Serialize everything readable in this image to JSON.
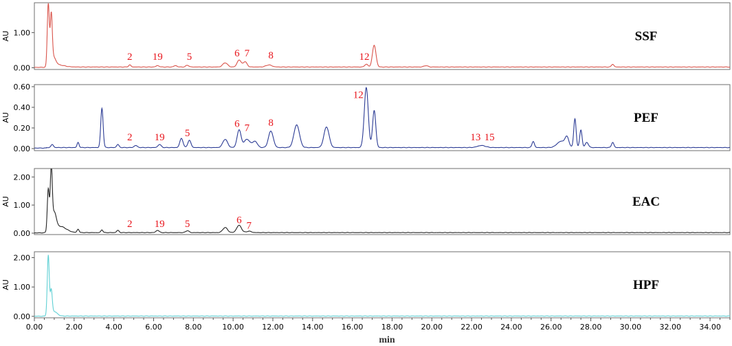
{
  "chart_data": {
    "type": "line",
    "xlabel": "min",
    "xlim": [
      0,
      35
    ],
    "x_ticks": [
      "0.00",
      "2.00",
      "4.00",
      "6.00",
      "8.00",
      "10.00",
      "12.00",
      "14.00",
      "16.00",
      "18.00",
      "20.00",
      "22.00",
      "24.00",
      "26.00",
      "28.00",
      "30.00",
      "32.00",
      "34.00"
    ],
    "panels": [
      {
        "name": "SSF",
        "color": "#d9534a",
        "ylabel": "AU",
        "ylim": [
          -0.05,
          1.85
        ],
        "y_ticks": [
          0.0,
          1.0
        ],
        "y_tick_labels": [
          "0.00",
          "1.00"
        ],
        "baseline": 0.02,
        "peaks": [
          [
            0.7,
            1.78,
            0.05
          ],
          [
            0.85,
            1.35,
            0.05
          ],
          [
            0.95,
            0.25,
            0.12
          ],
          [
            1.2,
            0.06,
            0.3
          ],
          [
            4.8,
            0.06,
            0.06
          ],
          [
            6.2,
            0.04,
            0.08
          ],
          [
            7.1,
            0.04,
            0.08
          ],
          [
            7.7,
            0.05,
            0.08
          ],
          [
            9.6,
            0.12,
            0.12
          ],
          [
            10.3,
            0.2,
            0.1
          ],
          [
            10.6,
            0.15,
            0.1
          ],
          [
            11.8,
            0.06,
            0.15
          ],
          [
            16.7,
            0.08,
            0.08
          ],
          [
            17.1,
            0.62,
            0.09
          ],
          [
            19.7,
            0.04,
            0.1
          ],
          [
            29.1,
            0.08,
            0.06
          ]
        ],
        "labels": [
          {
            "text": "2",
            "x": 4.8,
            "y": 0.22
          },
          {
            "text": "19",
            "x": 6.2,
            "y": 0.22
          },
          {
            "text": "5",
            "x": 7.8,
            "y": 0.22
          },
          {
            "text": "6",
            "x": 10.2,
            "y": 0.32
          },
          {
            "text": "7",
            "x": 10.7,
            "y": 0.32
          },
          {
            "text": "8",
            "x": 11.9,
            "y": 0.26
          },
          {
            "text": "12",
            "x": 16.6,
            "y": 0.22
          }
        ]
      },
      {
        "name": "PEF",
        "color": "#2a3a94",
        "ylabel": "AU",
        "ylim": [
          -0.02,
          0.62
        ],
        "y_ticks": [
          0.0,
          0.2,
          0.4,
          0.6
        ],
        "y_tick_labels": [
          "0.00",
          "0.20",
          "0.40",
          "0.60"
        ],
        "baseline": 0.01,
        "peaks": [
          [
            0.9,
            0.03,
            0.06
          ],
          [
            2.2,
            0.05,
            0.05
          ],
          [
            3.4,
            0.38,
            0.06
          ],
          [
            4.2,
            0.03,
            0.06
          ],
          [
            5.1,
            0.02,
            0.08
          ],
          [
            6.3,
            0.03,
            0.08
          ],
          [
            7.4,
            0.09,
            0.08
          ],
          [
            7.8,
            0.07,
            0.08
          ],
          [
            9.6,
            0.08,
            0.12
          ],
          [
            10.3,
            0.17,
            0.1
          ],
          [
            10.7,
            0.08,
            0.15
          ],
          [
            11.1,
            0.06,
            0.12
          ],
          [
            11.9,
            0.16,
            0.12
          ],
          [
            13.2,
            0.22,
            0.14
          ],
          [
            14.7,
            0.2,
            0.13
          ],
          [
            16.7,
            0.58,
            0.1
          ],
          [
            17.1,
            0.36,
            0.08
          ],
          [
            22.5,
            0.02,
            0.2
          ],
          [
            25.1,
            0.06,
            0.06
          ],
          [
            26.5,
            0.06,
            0.2
          ],
          [
            26.8,
            0.09,
            0.1
          ],
          [
            27.2,
            0.28,
            0.06
          ],
          [
            27.5,
            0.17,
            0.06
          ],
          [
            27.8,
            0.05,
            0.08
          ],
          [
            29.1,
            0.05,
            0.06
          ]
        ],
        "labels": [
          {
            "text": "2",
            "x": 4.8,
            "y": 0.08
          },
          {
            "text": "19",
            "x": 6.3,
            "y": 0.08
          },
          {
            "text": "5",
            "x": 7.7,
            "y": 0.12
          },
          {
            "text": "6",
            "x": 10.2,
            "y": 0.21
          },
          {
            "text": "7",
            "x": 10.7,
            "y": 0.17
          },
          {
            "text": "8",
            "x": 11.9,
            "y": 0.22
          },
          {
            "text": "12",
            "x": 16.3,
            "y": 0.49
          },
          {
            "text": "13",
            "x": 22.2,
            "y": 0.08
          },
          {
            "text": "15",
            "x": 22.9,
            "y": 0.08
          }
        ]
      },
      {
        "name": "EAC",
        "color": "#222222",
        "ylabel": "AU",
        "ylim": [
          -0.05,
          2.3
        ],
        "y_ticks": [
          0.0,
          1.0,
          2.0
        ],
        "y_tick_labels": [
          "0.00",
          "1.00",
          "2.00"
        ],
        "baseline": 0.02,
        "peaks": [
          [
            0.7,
            1.52,
            0.05
          ],
          [
            0.85,
            2.18,
            0.05
          ],
          [
            1.0,
            0.6,
            0.1
          ],
          [
            1.3,
            0.22,
            0.3
          ],
          [
            2.2,
            0.12,
            0.05
          ],
          [
            3.4,
            0.1,
            0.05
          ],
          [
            4.2,
            0.08,
            0.06
          ],
          [
            6.2,
            0.08,
            0.08
          ],
          [
            7.7,
            0.07,
            0.08
          ],
          [
            9.6,
            0.18,
            0.12
          ],
          [
            10.3,
            0.26,
            0.12
          ],
          [
            10.8,
            0.05,
            0.12
          ]
        ],
        "labels": [
          {
            "text": "2",
            "x": 4.8,
            "y": 0.22
          },
          {
            "text": "19",
            "x": 6.3,
            "y": 0.22
          },
          {
            "text": "5",
            "x": 7.7,
            "y": 0.22
          },
          {
            "text": "6",
            "x": 10.3,
            "y": 0.36
          },
          {
            "text": "7",
            "x": 10.8,
            "y": 0.16
          }
        ]
      },
      {
        "name": "HPF",
        "color": "#5fd0d4",
        "ylabel": "AU",
        "ylim": [
          -0.05,
          2.2
        ],
        "y_ticks": [
          0.0,
          1.0,
          2.0
        ],
        "y_tick_labels": [
          "0.00",
          "1.00",
          "2.00"
        ],
        "baseline": 0.01,
        "peaks": [
          [
            0.7,
            2.05,
            0.05
          ],
          [
            0.85,
            0.82,
            0.05
          ],
          [
            1.0,
            0.15,
            0.15
          ]
        ],
        "labels": []
      }
    ]
  }
}
